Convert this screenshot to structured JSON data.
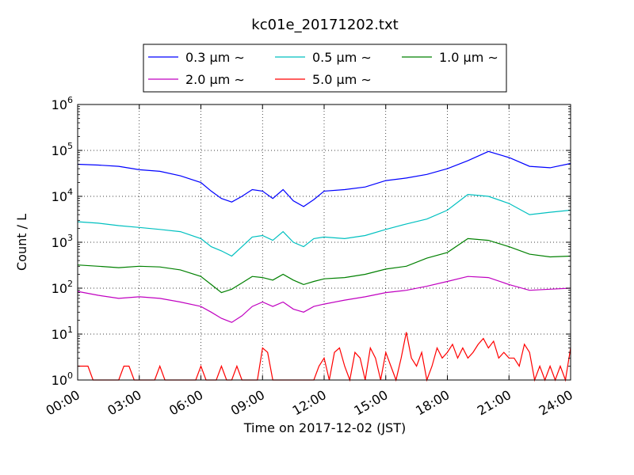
{
  "chart_data": {
    "type": "line",
    "title": "kc01e_20171202.txt",
    "xlabel": "Time on 2017-12-02 (JST)",
    "ylabel": "Count / L",
    "xlim": [
      "2017-12-02 00:00",
      "2017-12-03 00:00"
    ],
    "x_ticks": [
      "00:00",
      "03:00",
      "06:00",
      "09:00",
      "12:00",
      "15:00",
      "18:00",
      "21:00",
      "24:00"
    ],
    "y_scale": "log",
    "ylim": [
      1,
      1000000
    ],
    "y_ticks": [
      {
        "base": "10",
        "exp": "0",
        "value": 1
      },
      {
        "base": "10",
        "exp": "1",
        "value": 10
      },
      {
        "base": "10",
        "exp": "2",
        "value": 100
      },
      {
        "base": "10",
        "exp": "3",
        "value": 1000
      },
      {
        "base": "10",
        "exp": "4",
        "value": 10000
      },
      {
        "base": "10",
        "exp": "5",
        "value": 100000
      },
      {
        "base": "10",
        "exp": "6",
        "value": 1000000
      }
    ],
    "grid": true,
    "legend_position": "top",
    "series": [
      {
        "name": "0.3 μm ∼",
        "color": "#0000ff",
        "x": [
          "00:00",
          "01:00",
          "02:00",
          "03:00",
          "04:00",
          "05:00",
          "06:00",
          "06:30",
          "07:00",
          "07:30",
          "08:00",
          "08:30",
          "09:00",
          "09:30",
          "10:00",
          "10:30",
          "11:00",
          "11:30",
          "12:00",
          "13:00",
          "14:00",
          "15:00",
          "16:00",
          "17:00",
          "18:00",
          "19:00",
          "20:00",
          "21:00",
          "22:00",
          "23:00",
          "24:00"
        ],
        "y": [
          50000,
          48000,
          45000,
          38000,
          35000,
          28000,
          20000,
          13000,
          9000,
          7500,
          10000,
          14000,
          13000,
          9000,
          14000,
          8000,
          6000,
          8500,
          13000,
          14000,
          16000,
          22000,
          25000,
          30000,
          40000,
          60000,
          95000,
          70000,
          45000,
          42000,
          52000
        ]
      },
      {
        "name": "0.5 μm ∼",
        "color": "#00c0c0",
        "x": [
          "00:00",
          "01:00",
          "02:00",
          "03:00",
          "04:00",
          "05:00",
          "06:00",
          "06:30",
          "07:00",
          "07:30",
          "08:00",
          "08:30",
          "09:00",
          "09:30",
          "10:00",
          "10:30",
          "11:00",
          "11:30",
          "12:00",
          "13:00",
          "14:00",
          "15:00",
          "16:00",
          "17:00",
          "18:00",
          "19:00",
          "20:00",
          "21:00",
          "22:00",
          "23:00",
          "24:00"
        ],
        "y": [
          2800,
          2600,
          2300,
          2100,
          1900,
          1700,
          1200,
          800,
          650,
          500,
          800,
          1300,
          1400,
          1100,
          1700,
          1000,
          800,
          1200,
          1300,
          1200,
          1400,
          1900,
          2500,
          3200,
          5000,
          11000,
          10000,
          7000,
          4000,
          4500,
          5000
        ]
      },
      {
        "name": "1.0 μm ∼",
        "color": "#008000",
        "x": [
          "00:00",
          "01:00",
          "02:00",
          "03:00",
          "04:00",
          "05:00",
          "06:00",
          "06:30",
          "07:00",
          "07:30",
          "08:00",
          "08:30",
          "09:00",
          "09:30",
          "10:00",
          "10:30",
          "11:00",
          "11:30",
          "12:00",
          "13:00",
          "14:00",
          "15:00",
          "16:00",
          "17:00",
          "18:00",
          "19:00",
          "20:00",
          "21:00",
          "22:00",
          "23:00",
          "24:00"
        ],
        "y": [
          320,
          300,
          280,
          300,
          290,
          250,
          180,
          120,
          80,
          95,
          130,
          180,
          170,
          150,
          200,
          150,
          120,
          140,
          160,
          170,
          200,
          260,
          300,
          450,
          600,
          1200,
          1100,
          800,
          550,
          480,
          500
        ]
      },
      {
        "name": "2.0 μm ∼",
        "color": "#c000c0",
        "x": [
          "00:00",
          "01:00",
          "02:00",
          "03:00",
          "04:00",
          "05:00",
          "06:00",
          "06:30",
          "07:00",
          "07:30",
          "08:00",
          "08:30",
          "09:00",
          "09:30",
          "10:00",
          "10:30",
          "11:00",
          "11:30",
          "12:00",
          "13:00",
          "14:00",
          "15:00",
          "16:00",
          "17:00",
          "18:00",
          "19:00",
          "20:00",
          "21:00",
          "22:00",
          "23:00",
          "24:00"
        ],
        "y": [
          85,
          70,
          60,
          65,
          60,
          50,
          40,
          30,
          22,
          18,
          25,
          40,
          50,
          40,
          50,
          35,
          30,
          40,
          45,
          55,
          65,
          80,
          90,
          110,
          140,
          180,
          170,
          120,
          90,
          95,
          100
        ]
      },
      {
        "name": "5.0 μm ∼",
        "color": "#ff0000",
        "x": [
          "00:00",
          "00:30",
          "00:45",
          "01:00",
          "02:00",
          "02:15",
          "02:30",
          "02:45",
          "03:00",
          "03:45",
          "04:00",
          "04:15",
          "04:30",
          "05:45",
          "06:00",
          "06:15",
          "06:30",
          "06:45",
          "07:00",
          "07:15",
          "07:30",
          "07:45",
          "08:00",
          "08:30",
          "08:45",
          "09:00",
          "09:15",
          "09:30",
          "09:45",
          "10:00",
          "10:30",
          "11:00",
          "11:15",
          "11:30",
          "11:45",
          "12:00",
          "12:15",
          "12:30",
          "12:45",
          "13:00",
          "13:15",
          "13:30",
          "13:45",
          "14:00",
          "14:15",
          "14:30",
          "14:45",
          "15:00",
          "15:15",
          "15:30",
          "15:45",
          "16:00",
          "16:15",
          "16:30",
          "16:45",
          "17:00",
          "17:15",
          "17:30",
          "17:45",
          "18:00",
          "18:15",
          "18:30",
          "18:45",
          "19:00",
          "19:15",
          "19:30",
          "19:45",
          "20:00",
          "20:15",
          "20:30",
          "20:45",
          "21:00",
          "21:15",
          "21:30",
          "21:45",
          "22:00",
          "22:15",
          "22:30",
          "22:45",
          "23:00",
          "23:15",
          "23:30",
          "23:45",
          "24:00"
        ],
        "y": [
          2,
          2,
          1,
          1,
          1,
          2,
          2,
          1,
          1,
          1,
          2,
          1,
          1,
          1,
          2,
          1,
          1,
          1,
          2,
          1,
          1,
          2,
          1,
          1,
          1,
          5,
          4,
          1,
          1,
          1,
          1,
          1,
          1,
          1,
          2,
          3,
          1,
          4,
          5,
          2,
          1,
          4,
          3,
          1,
          5,
          3,
          1,
          4,
          2,
          1,
          3,
          11,
          3,
          2,
          4,
          1,
          2,
          5,
          3,
          4,
          6,
          3,
          5,
          3,
          4,
          6,
          8,
          5,
          7,
          3,
          4,
          3,
          3,
          2,
          6,
          4,
          1,
          2,
          1,
          2,
          1,
          2,
          1,
          5
        ]
      }
    ]
  }
}
